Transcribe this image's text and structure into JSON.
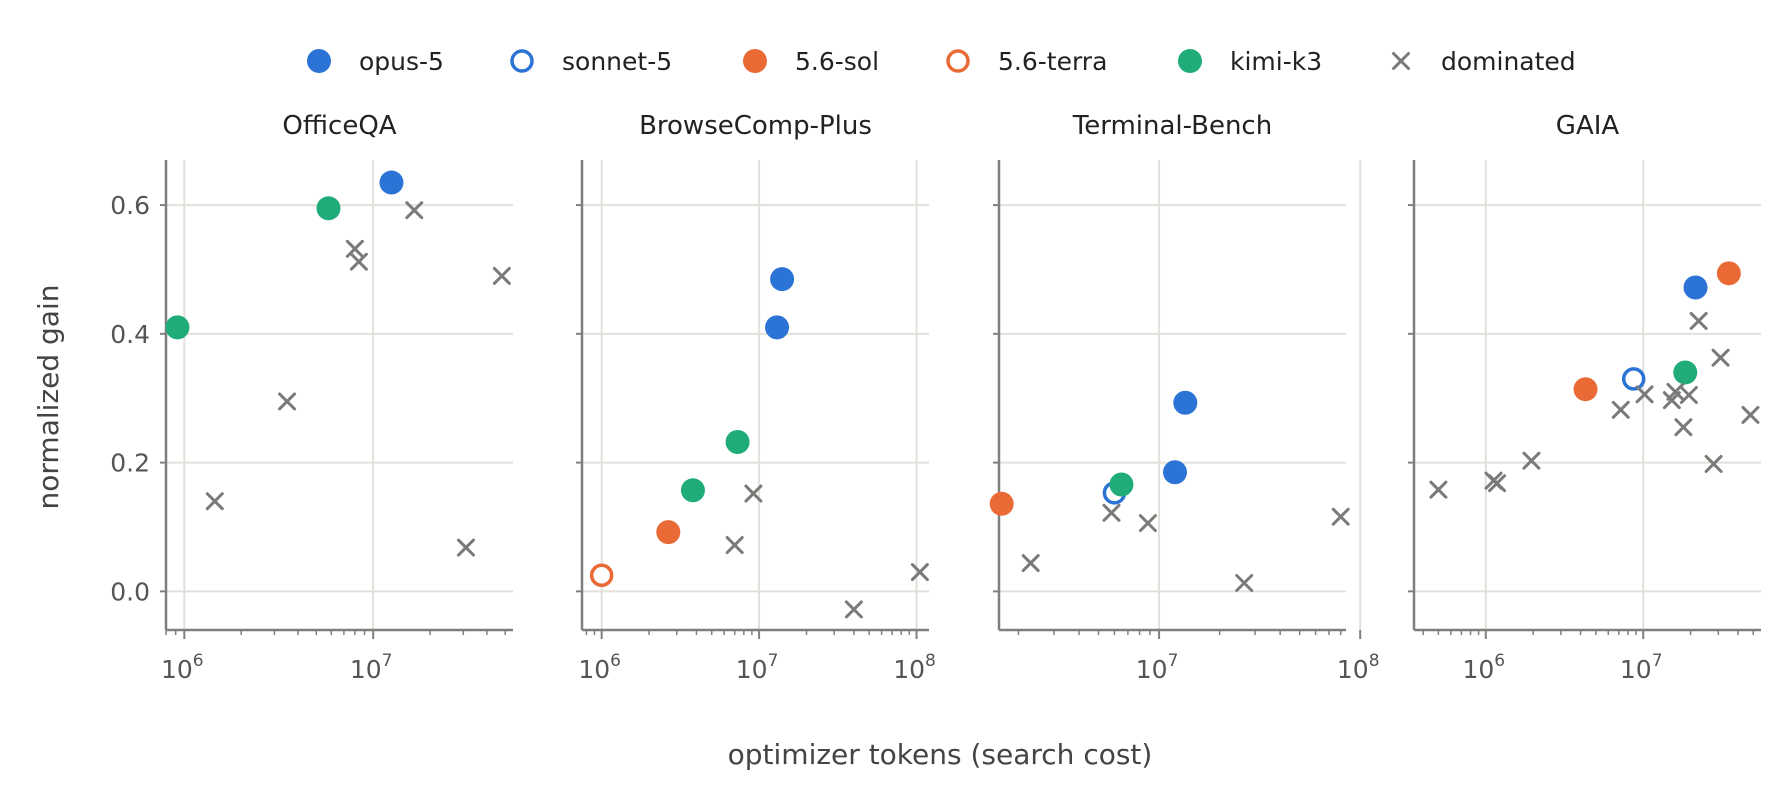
{
  "chart_data": {
    "type": "scatter",
    "xlabel": "optimizer tokens (search cost)",
    "ylabel": "normalized gain",
    "x_scale": "log",
    "y_ticks": [
      0.0,
      0.2,
      0.4,
      0.6
    ],
    "y_tick_labels": [
      "0.0",
      "0.2",
      "0.4",
      "0.6"
    ],
    "ylim": [
      -0.06,
      0.67
    ],
    "grid": true,
    "legend_placement": "top-center",
    "legend": [
      {
        "key": "opus",
        "label": "opus-5",
        "marker": "filled-circle",
        "color": "#2b74d6"
      },
      {
        "key": "sonnet",
        "label": "sonnet-5",
        "marker": "hollow-circle",
        "color": "#2b74d6"
      },
      {
        "key": "sol",
        "label": "5.6-sol",
        "marker": "filled-circle",
        "color": "#ea6a36"
      },
      {
        "key": "terra",
        "label": "5.6-terra",
        "marker": "hollow-circle",
        "color": "#ea6a36"
      },
      {
        "key": "kimi",
        "label": "kimi-k3",
        "marker": "filled-circle",
        "color": "#1fac78"
      },
      {
        "key": "dominated",
        "label": "dominated",
        "marker": "x",
        "color": "#7a7a78"
      }
    ],
    "panels": [
      {
        "title": "OfficeQA",
        "xlim": [
          800000,
          55000000
        ],
        "x_major_ticks": [
          {
            "base": "10",
            "exp": "6",
            "value": 1000000
          },
          {
            "base": "10",
            "exp": "7",
            "value": 10000000
          }
        ],
        "show_y_tick_labels": true,
        "points": [
          {
            "series": "kimi",
            "x": 920000,
            "y": 0.41
          },
          {
            "series": "kimi",
            "x": 5800000,
            "y": 0.595
          },
          {
            "series": "opus",
            "x": 12500000,
            "y": 0.635
          },
          {
            "series": "dominated",
            "x": 1450000,
            "y": 0.14
          },
          {
            "series": "dominated",
            "x": 3500000,
            "y": 0.295
          },
          {
            "series": "dominated",
            "x": 8000000,
            "y": 0.532
          },
          {
            "series": "dominated",
            "x": 8400000,
            "y": 0.512
          },
          {
            "series": "dominated",
            "x": 16500000,
            "y": 0.592
          },
          {
            "series": "dominated",
            "x": 31000000,
            "y": 0.068
          },
          {
            "series": "dominated",
            "x": 48000000,
            "y": 0.49
          }
        ]
      },
      {
        "title": "BrowseComp-Plus",
        "xlim": [
          750000,
          120000000
        ],
        "x_major_ticks": [
          {
            "base": "10",
            "exp": "6",
            "value": 1000000
          },
          {
            "base": "10",
            "exp": "7",
            "value": 10000000
          },
          {
            "base": "10",
            "exp": "8",
            "value": 100000000
          }
        ],
        "show_y_tick_labels": false,
        "points": [
          {
            "series": "terra",
            "x": 1000000,
            "y": 0.025
          },
          {
            "series": "sol",
            "x": 2650000,
            "y": 0.092
          },
          {
            "series": "kimi",
            "x": 3800000,
            "y": 0.157
          },
          {
            "series": "kimi",
            "x": 7300000,
            "y": 0.232
          },
          {
            "series": "opus",
            "x": 13000000,
            "y": 0.41
          },
          {
            "series": "opus",
            "x": 14000000,
            "y": 0.485
          },
          {
            "series": "dominated",
            "x": 7000000,
            "y": 0.072
          },
          {
            "series": "dominated",
            "x": 9200000,
            "y": 0.152
          },
          {
            "series": "dominated",
            "x": 40000000,
            "y": -0.028
          },
          {
            "series": "dominated",
            "x": 105000000,
            "y": 0.03
          }
        ]
      },
      {
        "title": "Terminal-Bench",
        "xlim": [
          1600000,
          85000000
        ],
        "x_major_ticks": [
          {
            "base": "10",
            "exp": "7",
            "value": 10000000
          },
          {
            "base": "10",
            "exp": "8",
            "value": 100000000
          }
        ],
        "show_y_tick_labels": false,
        "points": [
          {
            "series": "sol",
            "x": 1650000,
            "y": 0.136
          },
          {
            "series": "sonnet",
            "x": 6000000,
            "y": 0.153
          },
          {
            "series": "kimi",
            "x": 6500000,
            "y": 0.166
          },
          {
            "series": "opus",
            "x": 12000000,
            "y": 0.185
          },
          {
            "series": "opus",
            "x": 13500000,
            "y": 0.293
          },
          {
            "series": "dominated",
            "x": 2300000,
            "y": 0.044
          },
          {
            "series": "dominated",
            "x": 5800000,
            "y": 0.122
          },
          {
            "series": "dominated",
            "x": 8800000,
            "y": 0.106
          },
          {
            "series": "dominated",
            "x": 26500000,
            "y": 0.013
          },
          {
            "series": "dominated",
            "x": 80000000,
            "y": 0.116
          }
        ]
      },
      {
        "title": "GAIA",
        "xlim": [
          350000,
          56000000
        ],
        "x_major_ticks": [
          {
            "base": "10",
            "exp": "6",
            "value": 1000000
          },
          {
            "base": "10",
            "exp": "7",
            "value": 10000000
          }
        ],
        "show_y_tick_labels": false,
        "points": [
          {
            "series": "sol",
            "x": 4300000,
            "y": 0.314
          },
          {
            "series": "sonnet",
            "x": 8700000,
            "y": 0.33
          },
          {
            "series": "kimi",
            "x": 18500000,
            "y": 0.34
          },
          {
            "series": "opus",
            "x": 21500000,
            "y": 0.472
          },
          {
            "series": "sol",
            "x": 35000000,
            "y": 0.494
          },
          {
            "series": "dominated",
            "x": 500000,
            "y": 0.158
          },
          {
            "series": "dominated",
            "x": 1120000,
            "y": 0.172
          },
          {
            "series": "dominated",
            "x": 1180000,
            "y": 0.168
          },
          {
            "series": "dominated",
            "x": 1950000,
            "y": 0.203
          },
          {
            "series": "dominated",
            "x": 7200000,
            "y": 0.282
          },
          {
            "series": "dominated",
            "x": 10200000,
            "y": 0.306
          },
          {
            "series": "dominated",
            "x": 15200000,
            "y": 0.297
          },
          {
            "series": "dominated",
            "x": 16000000,
            "y": 0.31
          },
          {
            "series": "dominated",
            "x": 18000000,
            "y": 0.255
          },
          {
            "series": "dominated",
            "x": 19500000,
            "y": 0.305
          },
          {
            "series": "dominated",
            "x": 22500000,
            "y": 0.42
          },
          {
            "series": "dominated",
            "x": 28000000,
            "y": 0.198
          },
          {
            "series": "dominated",
            "x": 31000000,
            "y": 0.363
          },
          {
            "series": "dominated",
            "x": 48000000,
            "y": 0.274
          }
        ]
      }
    ]
  }
}
